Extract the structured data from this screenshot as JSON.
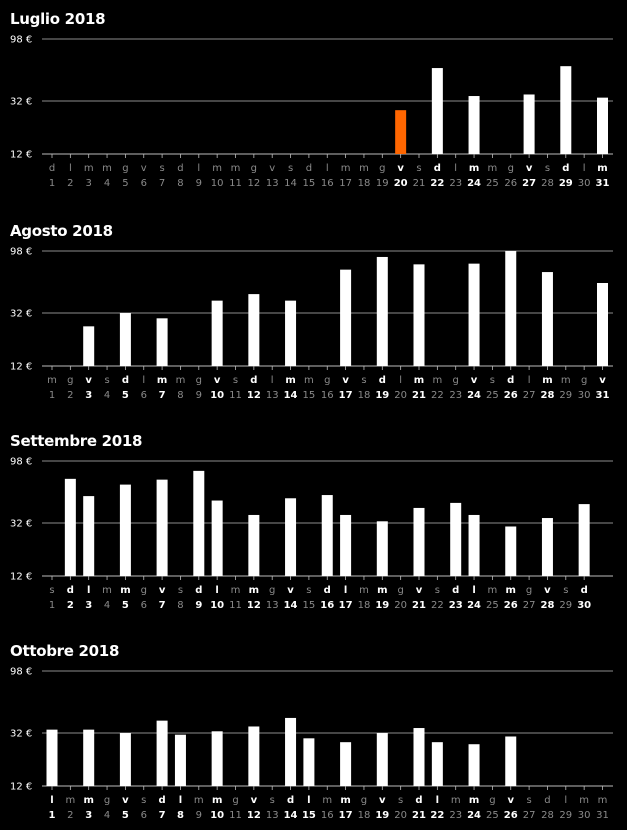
{
  "chart_data": [
    {
      "type": "bar",
      "title": "Luglio 2018",
      "y_ticks": [
        "98 €",
        "32 €",
        "12 €"
      ],
      "y_tick_values": [
        98,
        32,
        12
      ],
      "ylim": [
        12,
        98
      ],
      "y_scale": "log",
      "highlight_color": "#ff6600",
      "bar_color": "#ffffff",
      "days": [
        {
          "d": 1,
          "w": "d",
          "v": null
        },
        {
          "d": 2,
          "w": "l",
          "v": null
        },
        {
          "d": 3,
          "w": "m",
          "v": null
        },
        {
          "d": 4,
          "w": "m",
          "v": null
        },
        {
          "d": 5,
          "w": "g",
          "v": null
        },
        {
          "d": 6,
          "w": "v",
          "v": null
        },
        {
          "d": 7,
          "w": "s",
          "v": null
        },
        {
          "d": 8,
          "w": "d",
          "v": null
        },
        {
          "d": 9,
          "w": "l",
          "v": null
        },
        {
          "d": 10,
          "w": "m",
          "v": null
        },
        {
          "d": 11,
          "w": "m",
          "v": null
        },
        {
          "d": 12,
          "w": "g",
          "v": null
        },
        {
          "d": 13,
          "w": "v",
          "v": null
        },
        {
          "d": 14,
          "w": "s",
          "v": null
        },
        {
          "d": 15,
          "w": "d",
          "v": null
        },
        {
          "d": 16,
          "w": "l",
          "v": null
        },
        {
          "d": 17,
          "w": "m",
          "v": null
        },
        {
          "d": 18,
          "w": "m",
          "v": null
        },
        {
          "d": 19,
          "w": "g",
          "v": null
        },
        {
          "d": 20,
          "w": "v",
          "v": 27,
          "highlight": true
        },
        {
          "d": 21,
          "w": "s",
          "v": null
        },
        {
          "d": 22,
          "w": "d",
          "v": 58
        },
        {
          "d": 23,
          "w": "l",
          "v": null
        },
        {
          "d": 24,
          "w": "m",
          "v": 35
        },
        {
          "d": 25,
          "w": "m",
          "v": null
        },
        {
          "d": 26,
          "w": "g",
          "v": null
        },
        {
          "d": 27,
          "w": "v",
          "v": 36
        },
        {
          "d": 28,
          "w": "s",
          "v": null
        },
        {
          "d": 29,
          "w": "d",
          "v": 60
        },
        {
          "d": 30,
          "w": "l",
          "v": null
        },
        {
          "d": 31,
          "w": "m",
          "v": 34
        }
      ]
    },
    {
      "type": "bar",
      "title": "Agosto 2018",
      "y_ticks": [
        "98 €",
        "32 €",
        "12 €"
      ],
      "y_tick_values": [
        98,
        32,
        12
      ],
      "ylim": [
        12,
        98
      ],
      "y_scale": "log",
      "bar_color": "#ffffff",
      "days": [
        {
          "d": 1,
          "w": "m",
          "v": null
        },
        {
          "d": 2,
          "w": "g",
          "v": null
        },
        {
          "d": 3,
          "w": "v",
          "v": 25
        },
        {
          "d": 4,
          "w": "s",
          "v": null
        },
        {
          "d": 5,
          "w": "d",
          "v": 32
        },
        {
          "d": 6,
          "w": "l",
          "v": null
        },
        {
          "d": 7,
          "w": "m",
          "v": 29
        },
        {
          "d": 8,
          "w": "m",
          "v": null
        },
        {
          "d": 9,
          "w": "g",
          "v": null
        },
        {
          "d": 10,
          "w": "v",
          "v": 40
        },
        {
          "d": 11,
          "w": "s",
          "v": null
        },
        {
          "d": 12,
          "w": "d",
          "v": 45
        },
        {
          "d": 13,
          "w": "l",
          "v": null
        },
        {
          "d": 14,
          "w": "m",
          "v": 40
        },
        {
          "d": 15,
          "w": "m",
          "v": null
        },
        {
          "d": 16,
          "w": "g",
          "v": null
        },
        {
          "d": 17,
          "w": "v",
          "v": 70
        },
        {
          "d": 18,
          "w": "s",
          "v": null
        },
        {
          "d": 19,
          "w": "d",
          "v": 88
        },
        {
          "d": 20,
          "w": "l",
          "v": null
        },
        {
          "d": 21,
          "w": "m",
          "v": 77
        },
        {
          "d": 22,
          "w": "m",
          "v": null
        },
        {
          "d": 23,
          "w": "g",
          "v": null
        },
        {
          "d": 24,
          "w": "v",
          "v": 78
        },
        {
          "d": 25,
          "w": "s",
          "v": null
        },
        {
          "d": 26,
          "w": "d",
          "v": 98
        },
        {
          "d": 27,
          "w": "l",
          "v": null
        },
        {
          "d": 28,
          "w": "m",
          "v": 67
        },
        {
          "d": 29,
          "w": "m",
          "v": null
        },
        {
          "d": 30,
          "w": "g",
          "v": null
        },
        {
          "d": 31,
          "w": "v",
          "v": 55
        }
      ]
    },
    {
      "type": "bar",
      "title": "Settembre 2018",
      "y_ticks": [
        "98 €",
        "32 €",
        "12 €"
      ],
      "y_tick_values": [
        98,
        32,
        12
      ],
      "ylim": [
        12,
        98
      ],
      "y_scale": "log",
      "bar_color": "#ffffff",
      "days": [
        {
          "d": 1,
          "w": "s",
          "v": null
        },
        {
          "d": 2,
          "w": "d",
          "v": 71
        },
        {
          "d": 3,
          "w": "l",
          "v": 52
        },
        {
          "d": 4,
          "w": "m",
          "v": null
        },
        {
          "d": 5,
          "w": "m",
          "v": 64
        },
        {
          "d": 6,
          "w": "g",
          "v": null
        },
        {
          "d": 7,
          "w": "v",
          "v": 70
        },
        {
          "d": 8,
          "w": "s",
          "v": null
        },
        {
          "d": 9,
          "w": "d",
          "v": 82
        },
        {
          "d": 10,
          "w": "l",
          "v": 48
        },
        {
          "d": 11,
          "w": "m",
          "v": null
        },
        {
          "d": 12,
          "w": "m",
          "v": 37
        },
        {
          "d": 13,
          "w": "g",
          "v": null
        },
        {
          "d": 14,
          "w": "v",
          "v": 50
        },
        {
          "d": 15,
          "w": "s",
          "v": null
        },
        {
          "d": 16,
          "w": "d",
          "v": 53
        },
        {
          "d": 17,
          "w": "l",
          "v": 37
        },
        {
          "d": 18,
          "w": "m",
          "v": null
        },
        {
          "d": 19,
          "w": "m",
          "v": 33
        },
        {
          "d": 20,
          "w": "g",
          "v": null
        },
        {
          "d": 21,
          "w": "v",
          "v": 42
        },
        {
          "d": 22,
          "w": "s",
          "v": null
        },
        {
          "d": 23,
          "w": "d",
          "v": 46
        },
        {
          "d": 24,
          "w": "l",
          "v": 37
        },
        {
          "d": 25,
          "w": "m",
          "v": null
        },
        {
          "d": 26,
          "w": "m",
          "v": 30
        },
        {
          "d": 27,
          "w": "g",
          "v": null
        },
        {
          "d": 28,
          "w": "v",
          "v": 35
        },
        {
          "d": 29,
          "w": "s",
          "v": null
        },
        {
          "d": 30,
          "w": "d",
          "v": 45
        }
      ]
    },
    {
      "type": "bar",
      "title": "Ottobre 2018",
      "y_ticks": [
        "98 €",
        "32 €",
        "12 €"
      ],
      "y_tick_values": [
        98,
        32,
        12
      ],
      "ylim": [
        12,
        98
      ],
      "y_scale": "log",
      "bar_color": "#ffffff",
      "days": [
        {
          "d": 1,
          "w": "l",
          "v": 34
        },
        {
          "d": 2,
          "w": "m",
          "v": null
        },
        {
          "d": 3,
          "w": "m",
          "v": 34
        },
        {
          "d": 4,
          "w": "g",
          "v": null
        },
        {
          "d": 5,
          "w": "v",
          "v": 32
        },
        {
          "d": 6,
          "w": "s",
          "v": null
        },
        {
          "d": 7,
          "w": "d",
          "v": 40
        },
        {
          "d": 8,
          "w": "l",
          "v": 31
        },
        {
          "d": 9,
          "w": "m",
          "v": null
        },
        {
          "d": 10,
          "w": "m",
          "v": 33
        },
        {
          "d": 11,
          "w": "g",
          "v": null
        },
        {
          "d": 12,
          "w": "v",
          "v": 36
        },
        {
          "d": 13,
          "w": "s",
          "v": null
        },
        {
          "d": 14,
          "w": "d",
          "v": 42
        },
        {
          "d": 15,
          "w": "l",
          "v": 29
        },
        {
          "d": 16,
          "w": "m",
          "v": null
        },
        {
          "d": 17,
          "w": "m",
          "v": 27
        },
        {
          "d": 18,
          "w": "g",
          "v": null
        },
        {
          "d": 19,
          "w": "v",
          "v": 32
        },
        {
          "d": 20,
          "w": "s",
          "v": null
        },
        {
          "d": 21,
          "w": "d",
          "v": 35
        },
        {
          "d": 22,
          "w": "l",
          "v": 27
        },
        {
          "d": 23,
          "w": "m",
          "v": null
        },
        {
          "d": 24,
          "w": "m",
          "v": 26
        },
        {
          "d": 25,
          "w": "g",
          "v": null
        },
        {
          "d": 26,
          "w": "v",
          "v": 30
        },
        {
          "d": 27,
          "w": "s",
          "v": null
        },
        {
          "d": 28,
          "w": "d",
          "v": null
        },
        {
          "d": 29,
          "w": "l",
          "v": null
        },
        {
          "d": 30,
          "w": "m",
          "v": null
        },
        {
          "d": 31,
          "w": "m",
          "v": null
        }
      ]
    }
  ]
}
